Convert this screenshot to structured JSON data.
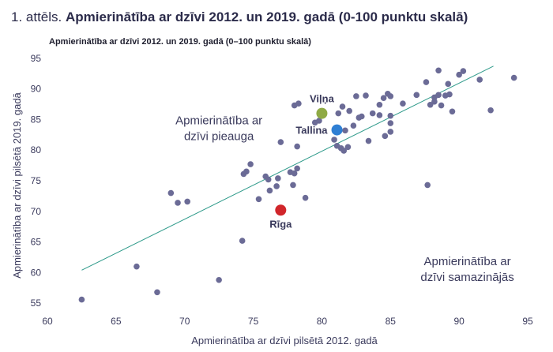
{
  "figure_number": "1. attēls.",
  "figure_title": "Apmierinātība ar dzīvi 2012. un 2019. gadā (0-100 punktu skalā)",
  "chart_data": {
    "type": "scatter",
    "title": "Apmierinātība ar dzīvi 2012. un 2019. gadā (0–100 punktu skalā)",
    "xlabel": "Apmierinātība ar dzīvi pilsētā 2012. gadā",
    "ylabel": "Apmierinātība ar dzīvi pilsētā 2019. gadā",
    "xlim": [
      60,
      95
    ],
    "ylim": [
      54,
      96
    ],
    "xticks": [
      60,
      65,
      70,
      75,
      80,
      85,
      90,
      95
    ],
    "yticks": [
      55,
      60,
      65,
      70,
      75,
      80,
      85,
      90,
      95
    ],
    "grid": false,
    "colors": {
      "points": "#6b6b96",
      "trend": "#2e9a8a",
      "axis_text": "#3a3a5c",
      "vilna": "#8faa45",
      "tallina": "#2f7fd4",
      "riga": "#d1262b"
    },
    "trendline": {
      "x": [
        62.5,
        92.5
      ],
      "y": [
        60.4,
        93.7
      ]
    },
    "points": [
      {
        "x": 62.5,
        "y": 55.6
      },
      {
        "x": 66.5,
        "y": 61.0
      },
      {
        "x": 68.0,
        "y": 56.8
      },
      {
        "x": 69.0,
        "y": 73.0
      },
      {
        "x": 69.5,
        "y": 71.4
      },
      {
        "x": 70.2,
        "y": 71.6
      },
      {
        "x": 72.5,
        "y": 58.8
      },
      {
        "x": 74.2,
        "y": 65.2
      },
      {
        "x": 74.3,
        "y": 76.1
      },
      {
        "x": 74.5,
        "y": 76.5
      },
      {
        "x": 74.8,
        "y": 77.7
      },
      {
        "x": 75.4,
        "y": 72.0
      },
      {
        "x": 75.9,
        "y": 75.7
      },
      {
        "x": 76.1,
        "y": 75.2
      },
      {
        "x": 76.2,
        "y": 73.4
      },
      {
        "x": 76.7,
        "y": 74.1
      },
      {
        "x": 76.8,
        "y": 75.4
      },
      {
        "x": 77.0,
        "y": 81.3
      },
      {
        "x": 77.7,
        "y": 76.4
      },
      {
        "x": 77.9,
        "y": 74.3
      },
      {
        "x": 78.0,
        "y": 76.2
      },
      {
        "x": 78.2,
        "y": 77.0
      },
      {
        "x": 78.2,
        "y": 80.6
      },
      {
        "x": 78.0,
        "y": 87.3
      },
      {
        "x": 78.3,
        "y": 87.6
      },
      {
        "x": 78.8,
        "y": 72.2
      },
      {
        "x": 79.5,
        "y": 84.5
      },
      {
        "x": 79.8,
        "y": 84.8
      },
      {
        "x": 80.9,
        "y": 81.7
      },
      {
        "x": 81.1,
        "y": 80.7
      },
      {
        "x": 81.2,
        "y": 86.0
      },
      {
        "x": 81.4,
        "y": 80.3
      },
      {
        "x": 81.5,
        "y": 87.1
      },
      {
        "x": 81.6,
        "y": 79.9
      },
      {
        "x": 81.7,
        "y": 83.2
      },
      {
        "x": 81.9,
        "y": 80.5
      },
      {
        "x": 82.0,
        "y": 86.4
      },
      {
        "x": 82.3,
        "y": 84.0
      },
      {
        "x": 82.5,
        "y": 88.8
      },
      {
        "x": 82.7,
        "y": 85.3
      },
      {
        "x": 82.9,
        "y": 85.5
      },
      {
        "x": 83.2,
        "y": 88.9
      },
      {
        "x": 83.4,
        "y": 81.5
      },
      {
        "x": 83.7,
        "y": 86.0
      },
      {
        "x": 84.2,
        "y": 85.7
      },
      {
        "x": 84.2,
        "y": 87.4
      },
      {
        "x": 84.5,
        "y": 88.5
      },
      {
        "x": 84.6,
        "y": 82.3
      },
      {
        "x": 84.8,
        "y": 89.2
      },
      {
        "x": 85.0,
        "y": 88.8
      },
      {
        "x": 85.0,
        "y": 85.6
      },
      {
        "x": 85.0,
        "y": 84.4
      },
      {
        "x": 85.0,
        "y": 83.0
      },
      {
        "x": 85.9,
        "y": 87.6
      },
      {
        "x": 86.9,
        "y": 89.0
      },
      {
        "x": 87.6,
        "y": 91.1
      },
      {
        "x": 87.7,
        "y": 74.3
      },
      {
        "x": 87.9,
        "y": 87.4
      },
      {
        "x": 88.2,
        "y": 87.9
      },
      {
        "x": 88.2,
        "y": 88.6
      },
      {
        "x": 88.5,
        "y": 93.0
      },
      {
        "x": 88.5,
        "y": 89.0
      },
      {
        "x": 88.7,
        "y": 87.3
      },
      {
        "x": 89.0,
        "y": 88.9
      },
      {
        "x": 89.2,
        "y": 90.8
      },
      {
        "x": 89.3,
        "y": 89.1
      },
      {
        "x": 89.5,
        "y": 86.3
      },
      {
        "x": 90.0,
        "y": 92.3
      },
      {
        "x": 90.3,
        "y": 92.9
      },
      {
        "x": 91.5,
        "y": 91.5
      },
      {
        "x": 92.3,
        "y": 86.5
      },
      {
        "x": 94.0,
        "y": 91.8
      }
    ],
    "highlighted": [
      {
        "name": "Viļņa",
        "x": 80.0,
        "y": 86.0,
        "color": "#8faa45"
      },
      {
        "name": "Tallina",
        "x": 81.1,
        "y": 83.3,
        "color": "#2f7fd4"
      },
      {
        "name": "Rīga",
        "x": 77.0,
        "y": 70.2,
        "color": "#d1262b"
      }
    ],
    "annotations": [
      {
        "lines": [
          "Apmierinātība ar",
          "dzīvi pieauga"
        ],
        "x": 72.5,
        "y": 84.2
      },
      {
        "lines": [
          "Apmierinātība ar",
          "dzīvi samazinājās"
        ],
        "x": 90.6,
        "y": 61.2
      }
    ]
  }
}
